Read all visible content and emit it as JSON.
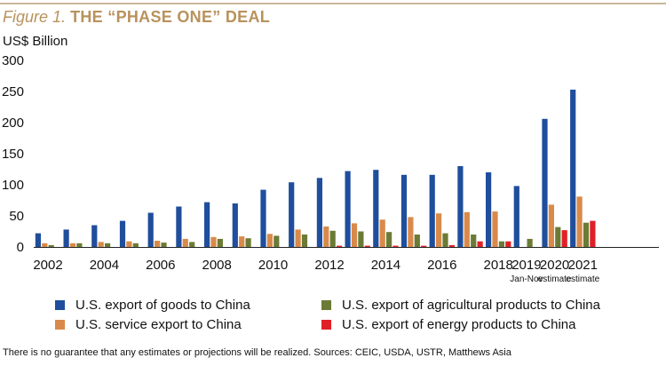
{
  "figure": {
    "label": "Figure 1.",
    "title": "THE “PHASE ONE” DEAL",
    "unit": "US$ Billion",
    "footnote": "There is no guarantee that any estimates or projections will be realized.  Sources: CEIC, USDA, USTR, Matthews Asia"
  },
  "chart_data": {
    "type": "bar",
    "title": "THE “PHASE ONE” DEAL",
    "ylabel": "US$ Billion",
    "ylim": [
      0,
      300
    ],
    "yticks": [
      0,
      50,
      100,
      150,
      200,
      250,
      300
    ],
    "grid": false,
    "legend_position": "bottom",
    "categories": [
      "2002",
      "2003",
      "2004",
      "2005",
      "2006",
      "2007",
      "2008",
      "2009",
      "2010",
      "2011",
      "2012",
      "2013",
      "2014",
      "2015",
      "2016",
      "2017",
      "2018",
      "2019",
      "2020",
      "2021"
    ],
    "x_tick_labels": [
      {
        "category": "2002",
        "label": "2002",
        "sub": ""
      },
      {
        "category": "2004",
        "label": "2004",
        "sub": ""
      },
      {
        "category": "2006",
        "label": "2006",
        "sub": ""
      },
      {
        "category": "2008",
        "label": "2008",
        "sub": ""
      },
      {
        "category": "2010",
        "label": "2010",
        "sub": ""
      },
      {
        "category": "2012",
        "label": "2012",
        "sub": ""
      },
      {
        "category": "2014",
        "label": "2014",
        "sub": ""
      },
      {
        "category": "2016",
        "label": "2016",
        "sub": ""
      },
      {
        "category": "2018",
        "label": "2018",
        "sub": ""
      },
      {
        "category": "2019",
        "label": "2019",
        "sub": "Jan-Nov"
      },
      {
        "category": "2020",
        "label": "2020",
        "sub": "estimate"
      },
      {
        "category": "2021",
        "label": "2021",
        "sub": "estimate"
      }
    ],
    "series": [
      {
        "name": "U.S. export of goods to China",
        "color": "#1f4e9c",
        "values": [
          22,
          28,
          35,
          42,
          55,
          65,
          72,
          70,
          92,
          104,
          111,
          122,
          124,
          116,
          116,
          130,
          120,
          98,
          206,
          253
        ]
      },
      {
        "name": "U.S. service export to China",
        "color": "#d98a4a",
        "values": [
          6,
          6,
          8,
          9,
          10,
          13,
          16,
          17,
          21,
          28,
          33,
          38,
          44,
          48,
          54,
          56,
          57,
          null,
          68,
          81
        ]
      },
      {
        "name": "U.S. export of agricultural products to China",
        "color": "#6b7b35",
        "values": [
          3,
          6,
          6,
          6,
          7,
          8,
          13,
          14,
          18,
          20,
          26,
          25,
          24,
          20,
          22,
          20,
          9,
          13,
          32,
          39
        ]
      },
      {
        "name": "U.S. export of energy products to China",
        "color": "#e02027",
        "values": [
          null,
          null,
          null,
          null,
          null,
          null,
          null,
          null,
          null,
          null,
          2,
          2,
          2,
          2,
          3,
          9,
          9,
          null,
          27,
          42
        ]
      }
    ]
  }
}
